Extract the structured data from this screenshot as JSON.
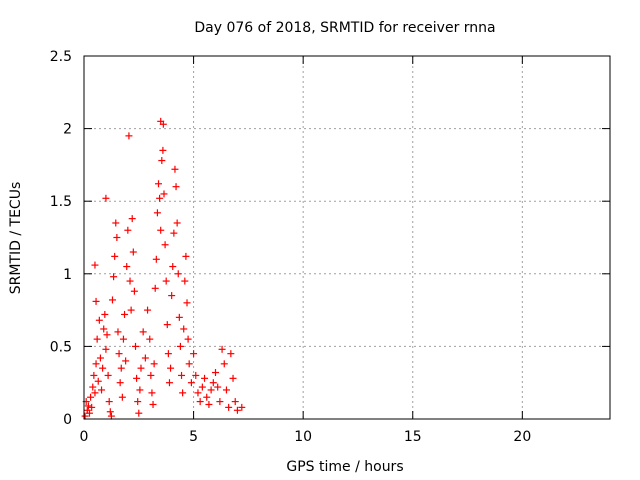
{
  "chart_data": {
    "type": "scatter",
    "title": "Day 076 of 2018, SRMTID for receiver rnna",
    "xlabel": "GPS time / hours",
    "ylabel": "SRMTID / TECUs",
    "xlim": [
      0,
      24
    ],
    "ylim": [
      0,
      2.5
    ],
    "xticks": [
      0,
      5,
      10,
      15,
      20
    ],
    "xtick_labels": [
      "0",
      "5",
      "10",
      "15",
      "20"
    ],
    "yticks": [
      0,
      0.5,
      1,
      1.5,
      2,
      2.5
    ],
    "ytick_labels": [
      "0",
      "0.5",
      "1",
      "1.5",
      "2",
      "2.5"
    ],
    "grid": true,
    "marker": "+",
    "color": "#ff0000",
    "series": [
      {
        "name": "SRMTID",
        "points": [
          [
            0.05,
            0.02
          ],
          [
            0.1,
            0.12
          ],
          [
            0.15,
            0.06
          ],
          [
            0.2,
            0.09
          ],
          [
            0.25,
            0.04
          ],
          [
            0.3,
            0.15
          ],
          [
            0.35,
            0.08
          ],
          [
            0.4,
            0.22
          ],
          [
            0.45,
            0.3
          ],
          [
            0.5,
            1.06
          ],
          [
            0.5,
            0.18
          ],
          [
            0.55,
            0.81
          ],
          [
            0.55,
            0.38
          ],
          [
            0.6,
            0.55
          ],
          [
            0.65,
            0.26
          ],
          [
            0.7,
            0.68
          ],
          [
            0.75,
            0.42
          ],
          [
            0.8,
            0.2
          ],
          [
            0.85,
            0.35
          ],
          [
            0.9,
            0.62
          ],
          [
            0.95,
            0.72
          ],
          [
            1.0,
            0.48
          ],
          [
            1.0,
            1.52
          ],
          [
            1.05,
            0.58
          ],
          [
            1.1,
            0.3
          ],
          [
            1.15,
            0.12
          ],
          [
            1.2,
            0.05
          ],
          [
            1.25,
            0.02
          ],
          [
            1.3,
            0.82
          ],
          [
            1.35,
            0.98
          ],
          [
            1.4,
            1.12
          ],
          [
            1.45,
            1.35
          ],
          [
            1.5,
            1.25
          ],
          [
            1.55,
            0.6
          ],
          [
            1.6,
            0.45
          ],
          [
            1.65,
            0.25
          ],
          [
            1.7,
            0.35
          ],
          [
            1.75,
            0.15
          ],
          [
            1.8,
            0.55
          ],
          [
            1.85,
            0.72
          ],
          [
            1.9,
            0.4
          ],
          [
            1.95,
            1.05
          ],
          [
            2.0,
            1.3
          ],
          [
            2.05,
            1.95
          ],
          [
            2.1,
            0.95
          ],
          [
            2.15,
            0.75
          ],
          [
            2.2,
            1.38
          ],
          [
            2.25,
            1.15
          ],
          [
            2.3,
            0.88
          ],
          [
            2.35,
            0.5
          ],
          [
            2.4,
            0.28
          ],
          [
            2.45,
            0.12
          ],
          [
            2.5,
            0.04
          ],
          [
            2.55,
            0.2
          ],
          [
            2.6,
            0.35
          ],
          [
            2.7,
            0.6
          ],
          [
            2.8,
            0.42
          ],
          [
            2.9,
            0.75
          ],
          [
            3.0,
            0.55
          ],
          [
            3.05,
            0.3
          ],
          [
            3.1,
            0.18
          ],
          [
            3.15,
            0.1
          ],
          [
            3.2,
            0.38
          ],
          [
            3.25,
            0.9
          ],
          [
            3.3,
            1.1
          ],
          [
            3.35,
            1.42
          ],
          [
            3.4,
            1.62
          ],
          [
            3.45,
            1.52
          ],
          [
            3.5,
            1.3
          ],
          [
            3.5,
            2.05
          ],
          [
            3.55,
            1.78
          ],
          [
            3.6,
            1.85
          ],
          [
            3.62,
            2.03
          ],
          [
            3.65,
            1.55
          ],
          [
            3.7,
            1.2
          ],
          [
            3.75,
            0.95
          ],
          [
            3.8,
            0.65
          ],
          [
            3.85,
            0.45
          ],
          [
            3.9,
            0.25
          ],
          [
            3.95,
            0.35
          ],
          [
            4.0,
            0.85
          ],
          [
            4.05,
            1.05
          ],
          [
            4.1,
            1.28
          ],
          [
            4.15,
            1.72
          ],
          [
            4.2,
            1.6
          ],
          [
            4.25,
            1.35
          ],
          [
            4.3,
            1.0
          ],
          [
            4.35,
            0.7
          ],
          [
            4.4,
            0.5
          ],
          [
            4.45,
            0.3
          ],
          [
            4.5,
            0.18
          ],
          [
            4.55,
            0.62
          ],
          [
            4.6,
            0.95
          ],
          [
            4.65,
            1.12
          ],
          [
            4.7,
            0.8
          ],
          [
            4.75,
            0.55
          ],
          [
            4.8,
            0.38
          ],
          [
            4.9,
            0.25
          ],
          [
            5.0,
            0.45
          ],
          [
            5.1,
            0.3
          ],
          [
            5.2,
            0.18
          ],
          [
            5.3,
            0.12
          ],
          [
            5.4,
            0.22
          ],
          [
            5.5,
            0.28
          ],
          [
            5.6,
            0.15
          ],
          [
            5.7,
            0.1
          ],
          [
            5.8,
            0.2
          ],
          [
            5.9,
            0.25
          ],
          [
            6.0,
            0.32
          ],
          [
            6.1,
            0.22
          ],
          [
            6.2,
            0.12
          ],
          [
            6.3,
            0.48
          ],
          [
            6.4,
            0.38
          ],
          [
            6.5,
            0.2
          ],
          [
            6.6,
            0.08
          ],
          [
            6.7,
            0.45
          ],
          [
            6.8,
            0.28
          ],
          [
            6.9,
            0.12
          ],
          [
            7.0,
            0.06
          ],
          [
            7.2,
            0.08
          ]
        ]
      }
    ]
  }
}
